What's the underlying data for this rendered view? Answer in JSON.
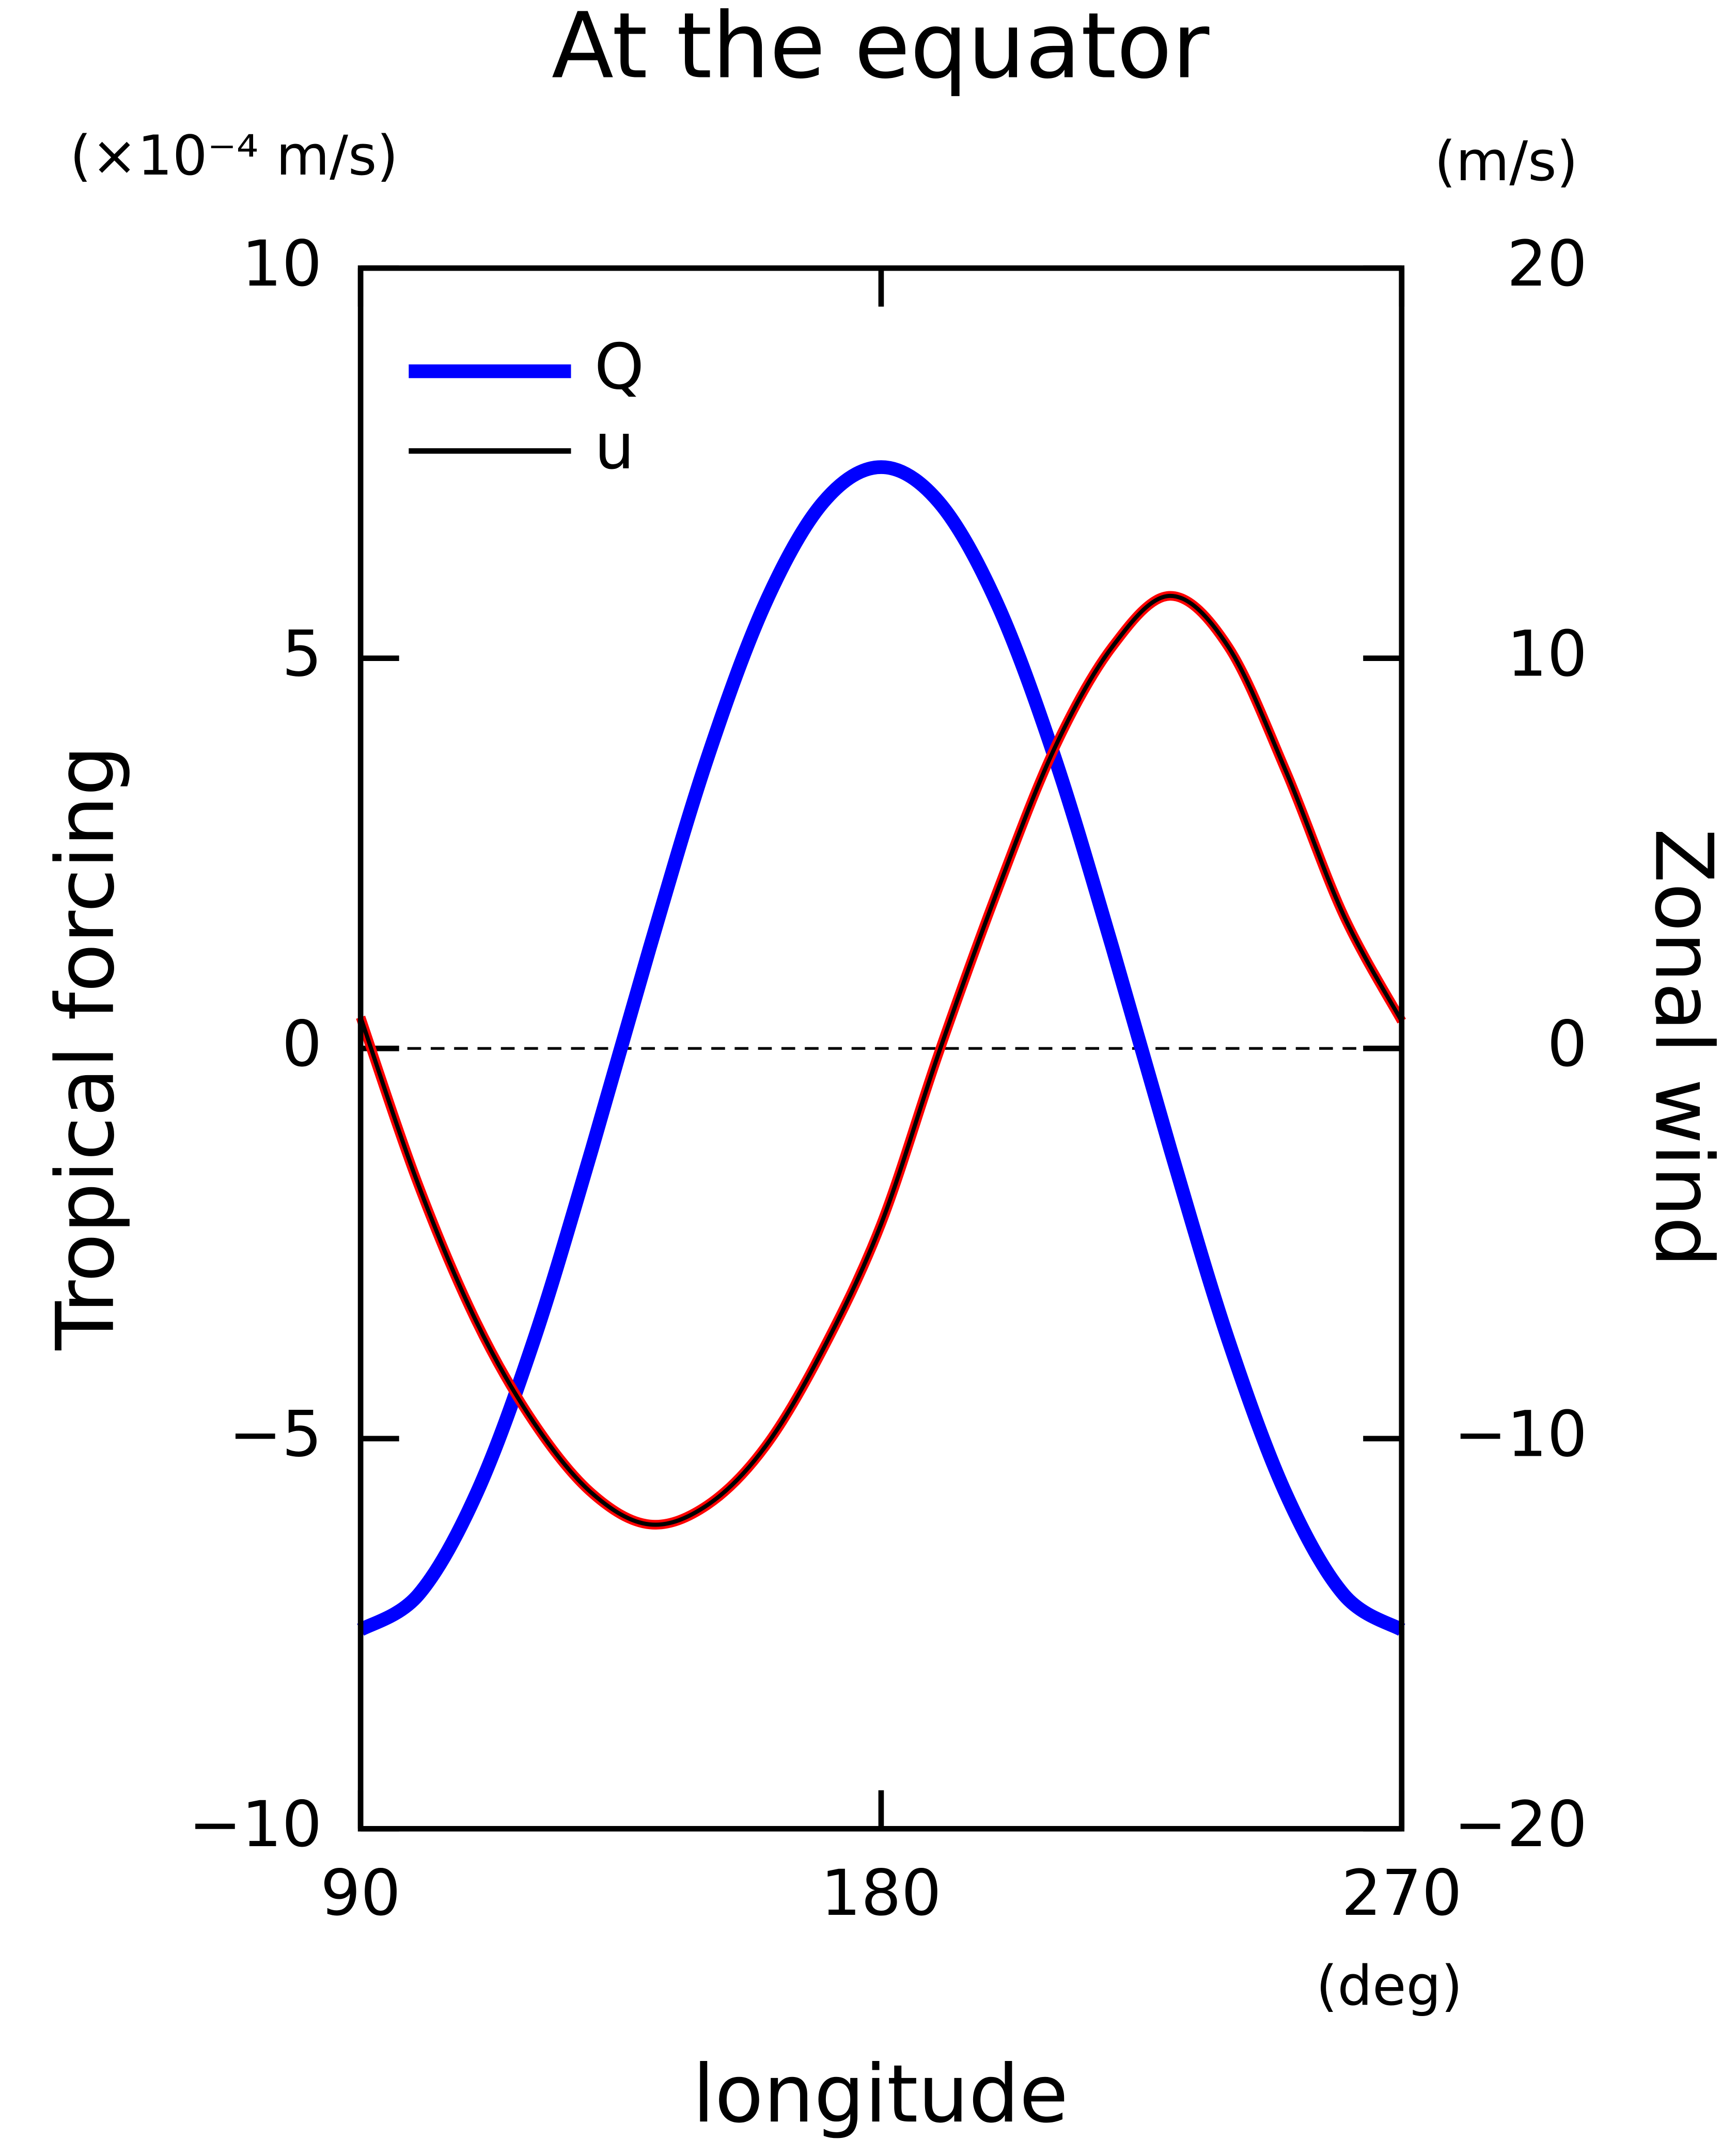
{
  "chart_data": {
    "type": "line",
    "title": "At the equator",
    "xlabel": "longitude",
    "xunit": "(deg)",
    "ylabel": "Tropical forcing",
    "yunit": "(×10⁻⁴ m/s)",
    "y2label": "Zonal wind",
    "y2unit": "(m/s)",
    "x": [
      90,
      100,
      110,
      120,
      130,
      140,
      150,
      160,
      170,
      180,
      190,
      200,
      210,
      220,
      230,
      240,
      250,
      260,
      270
    ],
    "series": [
      {
        "name": "Q",
        "color": "#0000ff",
        "values": [
          -7.45,
          -7.0,
          -5.71,
          -3.73,
          -1.29,
          1.29,
          3.73,
          5.71,
          7.0,
          7.45,
          7.0,
          5.71,
          3.73,
          1.29,
          -1.29,
          -3.73,
          -5.71,
          -7.0,
          -7.45
        ]
      },
      {
        "name": "u",
        "color": "#000000",
        "axis": "y2",
        "values": [
          0.8,
          -3.5,
          -7.0,
          -9.6,
          -11.4,
          -12.2,
          -11.7,
          -10.2,
          -7.7,
          -4.5,
          -0.1,
          4.0,
          7.7,
          10.3,
          11.6,
          10.3,
          7.1,
          3.4,
          0.7
        ]
      }
    ],
    "xlim": [
      90,
      270
    ],
    "xticks": [
      90,
      180,
      270
    ],
    "ylim": [
      -10,
      10
    ],
    "yticks": [
      {
        "value": -10,
        "label": "−10"
      },
      {
        "value": -5,
        "label": "−5"
      },
      0,
      5,
      10
    ],
    "y2lim": [
      -20,
      20
    ],
    "y2ticks": [
      {
        "value": -20,
        "label": "−20"
      },
      {
        "value": -10,
        "label": "−10"
      },
      0,
      10,
      20
    ],
    "legend": "upper left"
  }
}
